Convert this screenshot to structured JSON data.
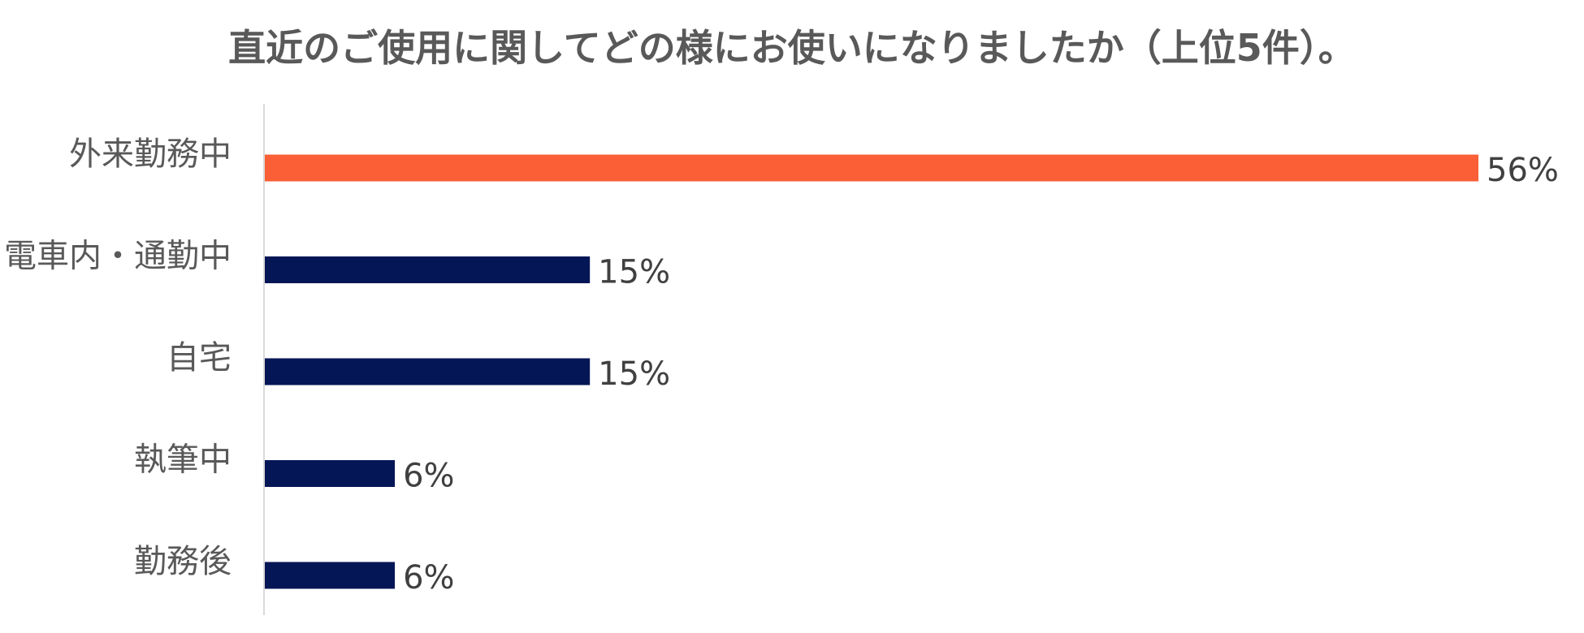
{
  "chart_data": {
    "type": "bar",
    "orientation": "horizontal",
    "title": "直近のご使用に関してどの様にお使いになりましたか（上位5件）。",
    "categories": [
      "外来勤務中",
      "電車内・通勤中",
      "自宅",
      "執筆中",
      "勤務後"
    ],
    "values": [
      56,
      15,
      15,
      6,
      6
    ],
    "value_labels": [
      "56%",
      "15%",
      "15%",
      "6%",
      "6%"
    ],
    "unit": "%",
    "xlim": [
      0,
      56
    ],
    "grid": false,
    "legend": "none",
    "colors": {
      "highlight": "#FA5F35",
      "default": "#041656",
      "axis": "#D9D9D9",
      "title": "#595959",
      "category_text": "#595959",
      "value_text": "#404040"
    },
    "highlight_index": 0
  }
}
